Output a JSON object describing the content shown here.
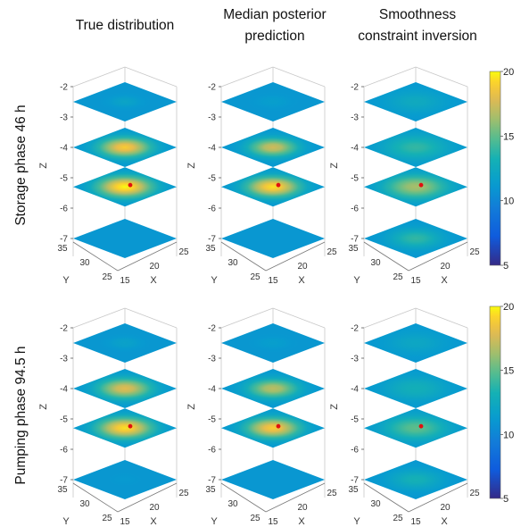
{
  "column_titles": [
    [
      "True distribution"
    ],
    [
      "Median posterior",
      "prediction"
    ],
    [
      "Smoothness",
      "constraint inversion"
    ]
  ],
  "row_titles": [
    "Storage phase 46 h",
    "Pumping phase 94.5 h"
  ],
  "colorbar": {
    "min": 5,
    "max": 20,
    "ticks": [
      "20",
      "15",
      "10",
      "5"
    ]
  },
  "chart_data": {
    "type": "heatmap",
    "title": "",
    "plot_kind": "3d stacked horizontal temperature slices",
    "colormap": "parula",
    "background_level": 11,
    "axes": {
      "z_label": "Z",
      "x_label": "X",
      "y_label": "Y",
      "z_ticks": [
        "-2",
        "-3",
        "-4",
        "-5",
        "-6",
        "-7"
      ],
      "x_ticks": [
        "15",
        "20",
        "25"
      ],
      "y_ticks": [
        "25",
        "30",
        "35"
      ]
    },
    "slice_depths": [
      -2.5,
      -4,
      -5.3,
      -7
    ],
    "colorbar_range": [
      5,
      20
    ],
    "panels": [
      {
        "row": "Storage phase 46 h",
        "column": "True distribution",
        "slice_peak_values": [
          12,
          19,
          20,
          11
        ],
        "slice_spread": [
          0.32,
          0.6,
          0.64,
          0.0
        ],
        "marker": "red point on slice Z=-5.3"
      },
      {
        "row": "Storage phase 46 h",
        "column": "Median posterior prediction",
        "slice_peak_values": [
          11.5,
          17.5,
          19.5,
          11
        ],
        "slice_spread": [
          0.35,
          0.56,
          0.62,
          0.0
        ],
        "marker": "red point on slice Z=-5.3"
      },
      {
        "row": "Storage phase 46 h",
        "column": "Smoothness constraint inversion",
        "slice_peak_values": [
          12.5,
          14,
          16.5,
          14
        ],
        "slice_spread": [
          0.7,
          0.78,
          0.75,
          0.6
        ],
        "marker": "red point on slice Z=-5.3"
      },
      {
        "row": "Pumping phase 94.5 h",
        "column": "True distribution",
        "slice_peak_values": [
          11.8,
          18,
          19.5,
          11.2
        ],
        "slice_spread": [
          0.35,
          0.62,
          0.64,
          0.3
        ],
        "marker": "red point on slice Z=-5.3"
      },
      {
        "row": "Pumping phase 94.5 h",
        "column": "Median posterior prediction",
        "slice_peak_values": [
          11.5,
          17,
          19,
          11
        ],
        "slice_spread": [
          0.35,
          0.58,
          0.62,
          0.0
        ],
        "marker": "red point on slice Z=-5.3"
      },
      {
        "row": "Pumping phase 94.5 h",
        "column": "Smoothness constraint inversion",
        "slice_peak_values": [
          12.2,
          13,
          15,
          13.2
        ],
        "slice_spread": [
          0.7,
          0.78,
          0.75,
          0.6
        ],
        "marker": "red point on slice Z=-5.3"
      }
    ]
  }
}
